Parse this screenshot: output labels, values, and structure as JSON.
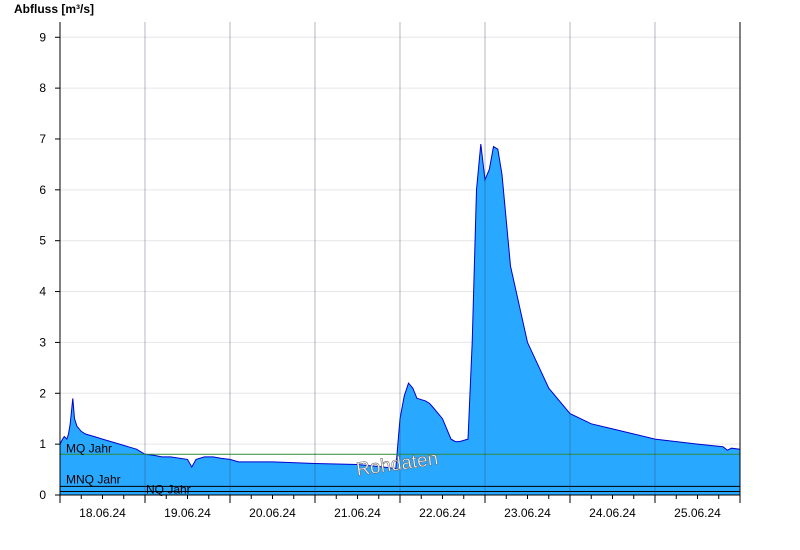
{
  "chart_data": {
    "type": "area",
    "ylabel": "Abfluss [m³/s]",
    "xlabel": "",
    "title": "",
    "ylim": [
      0,
      9.3
    ],
    "yticks": [
      0,
      1,
      2,
      3,
      4,
      5,
      6,
      7,
      8,
      9
    ],
    "grid": true,
    "watermark": "Rohdaten",
    "day_labels": [
      "18.06.24",
      "19.06.24",
      "20.06.24",
      "21.06.24",
      "22.06.24",
      "23.06.24",
      "24.06.24",
      "25.06.24"
    ],
    "x_unit": "days since start of plotted period",
    "x": [
      0.0,
      0.03,
      0.05,
      0.08,
      0.1,
      0.12,
      0.15,
      0.17,
      0.2,
      0.25,
      0.3,
      0.4,
      0.5,
      0.6,
      0.7,
      0.8,
      0.9,
      0.95,
      1.0,
      1.1,
      1.2,
      1.3,
      1.5,
      1.55,
      1.6,
      1.7,
      1.8,
      1.9,
      2.0,
      2.1,
      2.5,
      3.0,
      3.5,
      3.8,
      3.95,
      4.0,
      4.05,
      4.1,
      4.15,
      4.2,
      4.3,
      4.35,
      4.4,
      4.5,
      4.6,
      4.65,
      4.7,
      4.8,
      4.85,
      4.9,
      4.95,
      5.0,
      5.05,
      5.1,
      5.15,
      5.2,
      5.3,
      5.5,
      5.75,
      6.0,
      6.25,
      6.5,
      6.75,
      7.0,
      7.25,
      7.5,
      7.8,
      7.85,
      7.9,
      8.0
    ],
    "values": [
      1.0,
      1.1,
      1.15,
      1.1,
      1.2,
      1.4,
      1.9,
      1.5,
      1.35,
      1.25,
      1.2,
      1.15,
      1.1,
      1.05,
      1.0,
      0.95,
      0.9,
      0.85,
      0.8,
      0.78,
      0.75,
      0.75,
      0.7,
      0.55,
      0.7,
      0.75,
      0.75,
      0.72,
      0.7,
      0.65,
      0.65,
      0.62,
      0.6,
      0.55,
      0.52,
      1.5,
      1.95,
      2.2,
      2.1,
      1.9,
      1.85,
      1.8,
      1.7,
      1.5,
      1.1,
      1.05,
      1.05,
      1.1,
      3.0,
      6.0,
      6.9,
      6.2,
      6.4,
      6.85,
      6.8,
      6.3,
      4.5,
      3.0,
      2.1,
      1.6,
      1.4,
      1.3,
      1.2,
      1.1,
      1.05,
      1.0,
      0.95,
      0.88,
      0.92,
      0.9
    ],
    "reference_lines": [
      {
        "label": "MQ Jahr",
        "value": 0.8,
        "color": "#2e8b3a"
      },
      {
        "label": "MNQ Jahr",
        "value": 0.17,
        "color": "#000000"
      },
      {
        "label": "NQ Jahr",
        "value": 0.07,
        "color": "#000000"
      }
    ],
    "colors": {
      "fill": "#29a8ff",
      "line": "#0000cc",
      "grid": "#e6e6e6"
    }
  }
}
